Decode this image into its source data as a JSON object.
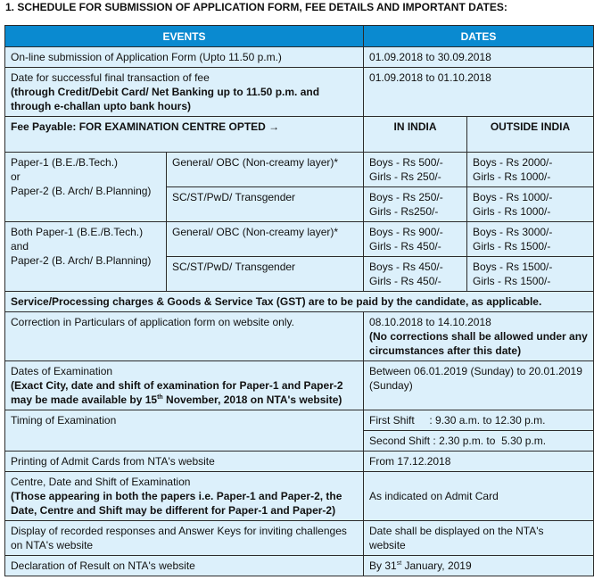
{
  "title": "1.   SCHEDULE FOR SUBMISSION OF APPLICATION FORM, FEE DETAILS AND IMPORTANT DATES:",
  "header": {
    "events": "EVENTS",
    "dates": "DATES"
  },
  "colors": {
    "header_bg": "#0a8ad0",
    "cell_bg": "#dcf0fb"
  },
  "rows": {
    "online": {
      "event": "On-line submission of Application Form (Upto 11.50 p.m.)",
      "date": "01.09.2018 to 30.09.2018"
    },
    "fee_txn": {
      "event": "Date for successful final transaction of fee",
      "event_note": "(through Credit/Debit Card/ Net Banking up to 11.50 p.m. and through e-challan upto bank hours)",
      "date": "01.09.2018 to 01.10.2018"
    },
    "fee_header": {
      "label": "Fee Payable: FOR EXAMINATION CENTRE OPTED →",
      "india": "IN INDIA",
      "outside": "OUTSIDE INDIA"
    },
    "fees": [
      {
        "paper": [
          "Paper-1 (B.E./B.Tech.)",
          "or",
          "Paper-2  (B. Arch/ B.Planning)"
        ],
        "cats": [
          {
            "cat": "General/ OBC (Non-creamy layer)*",
            "india": [
              "Boys -  Rs 500/-",
              "Girls -  Rs 250/-"
            ],
            "outside": [
              "Boys - Rs 2000/-",
              "Girls -  Rs 1000/-"
            ]
          },
          {
            "cat": "SC/ST/PwD/ Transgender",
            "india": [
              "Boys -  Rs 250/-",
              "Girls -  Rs250/-"
            ],
            "outside": [
              "Boys - Rs 1000/-",
              "Girls -  Rs 1000/-"
            ]
          }
        ]
      },
      {
        "paper": [
          "Both Paper-1 (B.E./B.Tech.)",
          "and",
          "Paper-2  (B. Arch/ B.Planning)"
        ],
        "cats": [
          {
            "cat": "General/ OBC (Non-creamy layer)*",
            "india": [
              "Boys -  Rs 900/-",
              "Girls -  Rs 450/-"
            ],
            "outside": [
              "Boys - Rs 3000/-",
              "Girls -  Rs 1500/-"
            ]
          },
          {
            "cat": "SC/ST/PwD/ Transgender",
            "india": [
              "Boys -  Rs 450/-",
              "Girls -  Rs 450/-"
            ],
            "outside": [
              "Boys - Rs 1500/-",
              "Girls -  Rs 1500/-"
            ]
          }
        ]
      }
    ],
    "gst": "Service/Processing charges & Goods & Service Tax (GST) are to be paid by the candidate, as applicable.",
    "correction": {
      "event": "Correction in Particulars of application form on website only.",
      "date": "08.10.2018 to 14.10.2018",
      "date_note": "(No corrections shall be allowed under any circumstances after this date)"
    },
    "exam_dates": {
      "event": "Dates of Examination",
      "note_pre": "(Exact City, date and shift of examination for Paper-1 and Paper-2 may be made available by 15",
      "note_sup": "th",
      "note_post": " November, 2018 on NTA's website)",
      "date": "Between 06.01.2019 (Sunday) to 20.01.2019 (Sunday)"
    },
    "timing": {
      "event": "Timing of Examination",
      "first": "First Shift     : 9.30 a.m. to 12.30 p.m.",
      "second": "Second Shift : 2.30 p.m. to  5.30 p.m."
    },
    "admit": {
      "event": "Printing of Admit Cards from NTA's website",
      "date": "From 17.12.2018"
    },
    "centre": {
      "event": "Centre, Date and Shift of Examination",
      "note": "(Those appearing in both the papers i.e. Paper-1 and Paper-2, the Date, Centre and Shift may be different for Paper-1 and Paper-2)",
      "date": "As indicated on Admit Card"
    },
    "display": {
      "event": "Display of recorded responses and Answer Keys for inviting challenges on NTA's website",
      "date": "Date shall be displayed on the NTA's website"
    },
    "result": {
      "event": "Declaration of Result on NTA's  website",
      "date_pre": "By 31",
      "date_sup": "st",
      "date_post": " January, 2019"
    }
  }
}
